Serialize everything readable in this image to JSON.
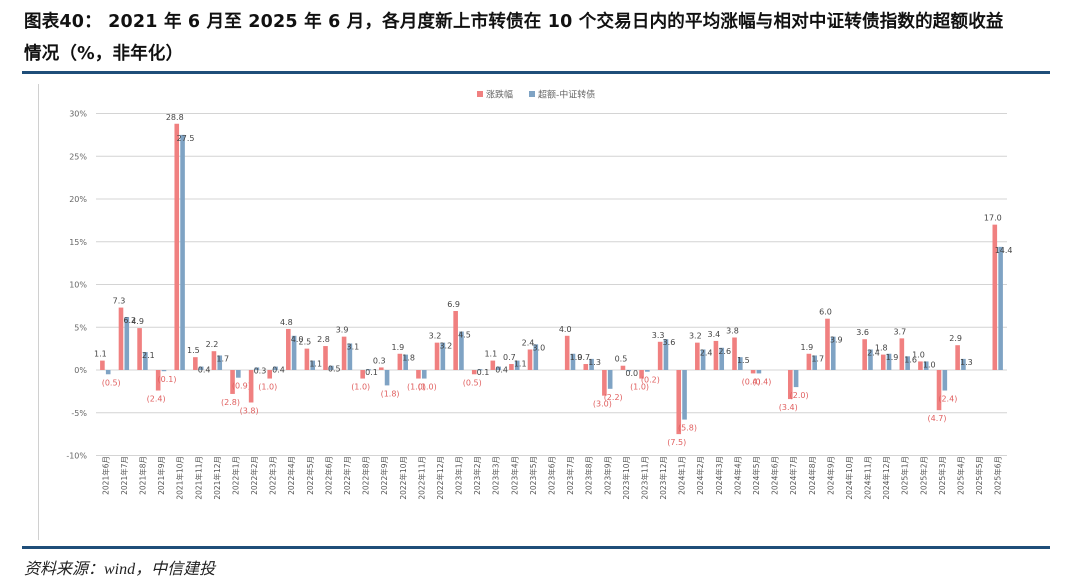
{
  "header": {
    "title_line1": "图表40：  2021 年 6 月至 2025 年 6 月，各月度新上市转债在 10 个交易日内的平均涨幅与相对中证转债指数的超额收益",
    "title_line2": "情况（%，非年化）"
  },
  "footer": {
    "source": "资料来源：wind，中信建投"
  },
  "colors": {
    "series_up": "#f08080",
    "series_excess": "#7fa3c4",
    "negative_label": "#e06060",
    "positive_label": "#444444",
    "rule": "#1f4e79",
    "grid": "#d4d4d4"
  },
  "chart_data": {
    "type": "bar",
    "title": "2021年6月至2025年6月，各月度新上市转债在10个交易日内的平均涨幅与相对中证转债指数的超额收益情况（%，非年化）",
    "xlabel": "",
    "ylabel": "",
    "ylim": [
      -10,
      30
    ],
    "yticks": [
      "-10%",
      "-5%",
      "0%",
      "5%",
      "10%",
      "15%",
      "20%",
      "25%",
      "30%"
    ],
    "ytick_values": [
      -10,
      -5,
      0,
      5,
      10,
      15,
      20,
      25,
      30
    ],
    "grid": true,
    "legend_position": "top",
    "categories": [
      "2021年6月",
      "2021年7月",
      "2021年8月",
      "2021年9月",
      "2021年10月",
      "2021年11月",
      "2021年12月",
      "2022年1月",
      "2022年2月",
      "2022年3月",
      "2022年4月",
      "2022年5月",
      "2022年6月",
      "2022年7月",
      "2022年8月",
      "2022年9月",
      "2022年10月",
      "2022年11月",
      "2022年12月",
      "2023年1月",
      "2023年2月",
      "2023年3月",
      "2023年4月",
      "2023年5月",
      "2023年6月",
      "2023年7月",
      "2023年8月",
      "2023年9月",
      "2023年10月",
      "2023年11月",
      "2023年12月",
      "2024年1月",
      "2024年2月",
      "2024年3月",
      "2024年4月",
      "2024年5月",
      "2024年6月",
      "2024年7月",
      "2024年8月",
      "2024年9月",
      "2024年10月",
      "2024年11月",
      "2024年12月",
      "2025年1月",
      "2025年2月",
      "2025年3月",
      "2025年4月",
      "2025年5月",
      "2025年6月"
    ],
    "series": [
      {
        "name": "涨跌幅",
        "values": [
          1.1,
          7.3,
          4.9,
          -2.4,
          28.8,
          1.5,
          2.2,
          -2.8,
          -3.8,
          -1.0,
          4.8,
          2.5,
          2.8,
          3.9,
          -1.0,
          0.3,
          1.9,
          -1.0,
          3.2,
          6.9,
          -0.5,
          1.1,
          0.7,
          2.4,
          null,
          4.0,
          0.7,
          -3.0,
          0.5,
          -1.0,
          3.3,
          -7.5,
          3.2,
          3.4,
          3.8,
          -0.4,
          null,
          -3.4,
          1.9,
          6.0,
          null,
          3.6,
          1.8,
          3.7,
          1.0,
          -4.7,
          2.9,
          null,
          17.0
        ]
      },
      {
        "name": "超额-中证转债",
        "values": [
          -0.5,
          6.2,
          2.1,
          -0.1,
          27.5,
          0.4,
          1.7,
          -0.9,
          0.3,
          0.4,
          4.0,
          1.1,
          0.5,
          3.1,
          0.1,
          -1.8,
          1.8,
          -1.0,
          3.2,
          4.5,
          0.1,
          0.4,
          1.1,
          3.0,
          null,
          1.9,
          1.3,
          -2.2,
          0.0,
          -0.2,
          3.6,
          -5.8,
          2.4,
          2.6,
          1.5,
          -0.4,
          null,
          -2.0,
          1.7,
          3.9,
          null,
          2.4,
          1.9,
          1.6,
          1.0,
          -2.4,
          1.3,
          null,
          14.4
        ]
      }
    ],
    "label_format": "negative values shown in parentheses, e.g. (0.5)"
  }
}
